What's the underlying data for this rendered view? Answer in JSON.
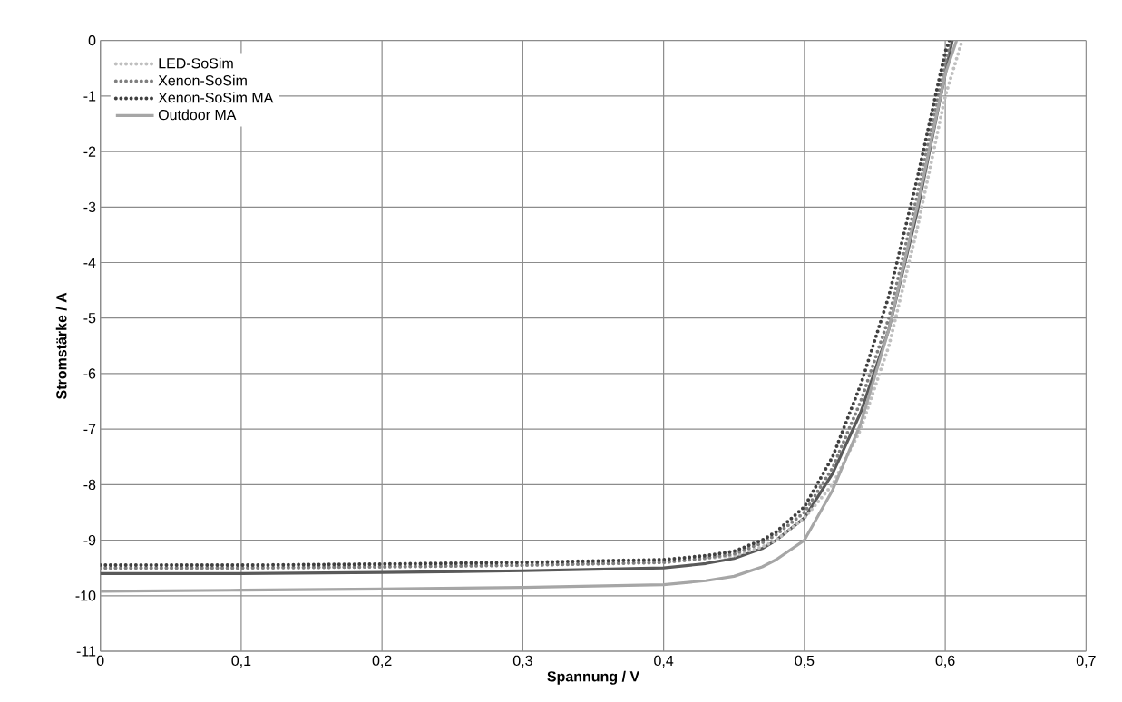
{
  "chart_data": {
    "type": "line",
    "xlabel": "Spannung / V",
    "ylabel": "Stromstärke / A",
    "xlim": [
      0,
      0.7
    ],
    "ylim": [
      -11,
      0
    ],
    "xticks": [
      {
        "value": 0,
        "label": "0"
      },
      {
        "value": 0.1,
        "label": "0,1"
      },
      {
        "value": 0.2,
        "label": "0,2"
      },
      {
        "value": 0.3,
        "label": "0,3"
      },
      {
        "value": 0.4,
        "label": "0,4"
      },
      {
        "value": 0.5,
        "label": "0,5"
      },
      {
        "value": 0.6,
        "label": "0,6"
      },
      {
        "value": 0.7,
        "label": "0,7"
      }
    ],
    "yticks": [
      -11,
      -10,
      -9,
      -8,
      -7,
      -6,
      -5,
      -4,
      -3,
      -2,
      -1,
      0
    ],
    "grid": true,
    "legend": "top left",
    "marker": "none",
    "series": [
      {
        "color": "#595959",
        "line_style": "solid",
        "x": [
          0,
          0.1,
          0.2,
          0.3,
          0.4,
          0.43,
          0.45,
          0.47,
          0.48,
          0.5,
          0.52,
          0.54,
          0.56,
          0.58,
          0.6,
          0.605
        ],
        "values": [
          -9.6,
          -9.6,
          -9.58,
          -9.55,
          -9.5,
          -9.42,
          -9.33,
          -9.15,
          -9.0,
          -8.6,
          -7.8,
          -6.7,
          -5.2,
          -3.1,
          -0.6,
          0
        ]
      },
      {
        "name": "LED-SoSim",
        "color": "#bfbfbf",
        "line_style": "dotted",
        "x": [
          0,
          0.1,
          0.2,
          0.3,
          0.4,
          0.43,
          0.45,
          0.47,
          0.48,
          0.5,
          0.52,
          0.54,
          0.56,
          0.58,
          0.6,
          0.612
        ],
        "values": [
          -9.5,
          -9.5,
          -9.48,
          -9.45,
          -9.4,
          -9.33,
          -9.28,
          -9.12,
          -9.0,
          -8.6,
          -8.0,
          -7.0,
          -5.5,
          -3.4,
          -1.0,
          0
        ]
      },
      {
        "name": "Xenon-SoSim",
        "color": "#7f7f7f",
        "line_style": "dotted",
        "x": [
          0,
          0.1,
          0.2,
          0.3,
          0.4,
          0.43,
          0.45,
          0.47,
          0.48,
          0.5,
          0.52,
          0.54,
          0.56,
          0.58,
          0.6,
          0.604
        ],
        "values": [
          -9.5,
          -9.5,
          -9.48,
          -9.45,
          -9.4,
          -9.32,
          -9.25,
          -9.05,
          -8.9,
          -8.5,
          -7.7,
          -6.5,
          -5.0,
          -2.8,
          -0.4,
          0
        ]
      },
      {
        "name": "Xenon-SoSim MA",
        "color": "#404040",
        "line_style": "dotted",
        "x": [
          0,
          0.1,
          0.2,
          0.3,
          0.4,
          0.43,
          0.45,
          0.47,
          0.48,
          0.5,
          0.52,
          0.54,
          0.56,
          0.58,
          0.6,
          0.603
        ],
        "values": [
          -9.45,
          -9.45,
          -9.43,
          -9.4,
          -9.35,
          -9.28,
          -9.2,
          -9.0,
          -8.85,
          -8.4,
          -7.5,
          -6.2,
          -4.6,
          -2.5,
          -0.2,
          0
        ]
      },
      {
        "name": "Outdoor MA",
        "color": "#a6a6a6",
        "line_style": "solid",
        "x": [
          0,
          0.1,
          0.2,
          0.3,
          0.4,
          0.43,
          0.45,
          0.47,
          0.48,
          0.5,
          0.52,
          0.54,
          0.56,
          0.58,
          0.6,
          0.608
        ],
        "values": [
          -9.92,
          -9.9,
          -9.88,
          -9.85,
          -9.8,
          -9.73,
          -9.65,
          -9.48,
          -9.35,
          -9.0,
          -8.1,
          -6.9,
          -5.2,
          -3.0,
          -0.6,
          0
        ]
      }
    ]
  }
}
